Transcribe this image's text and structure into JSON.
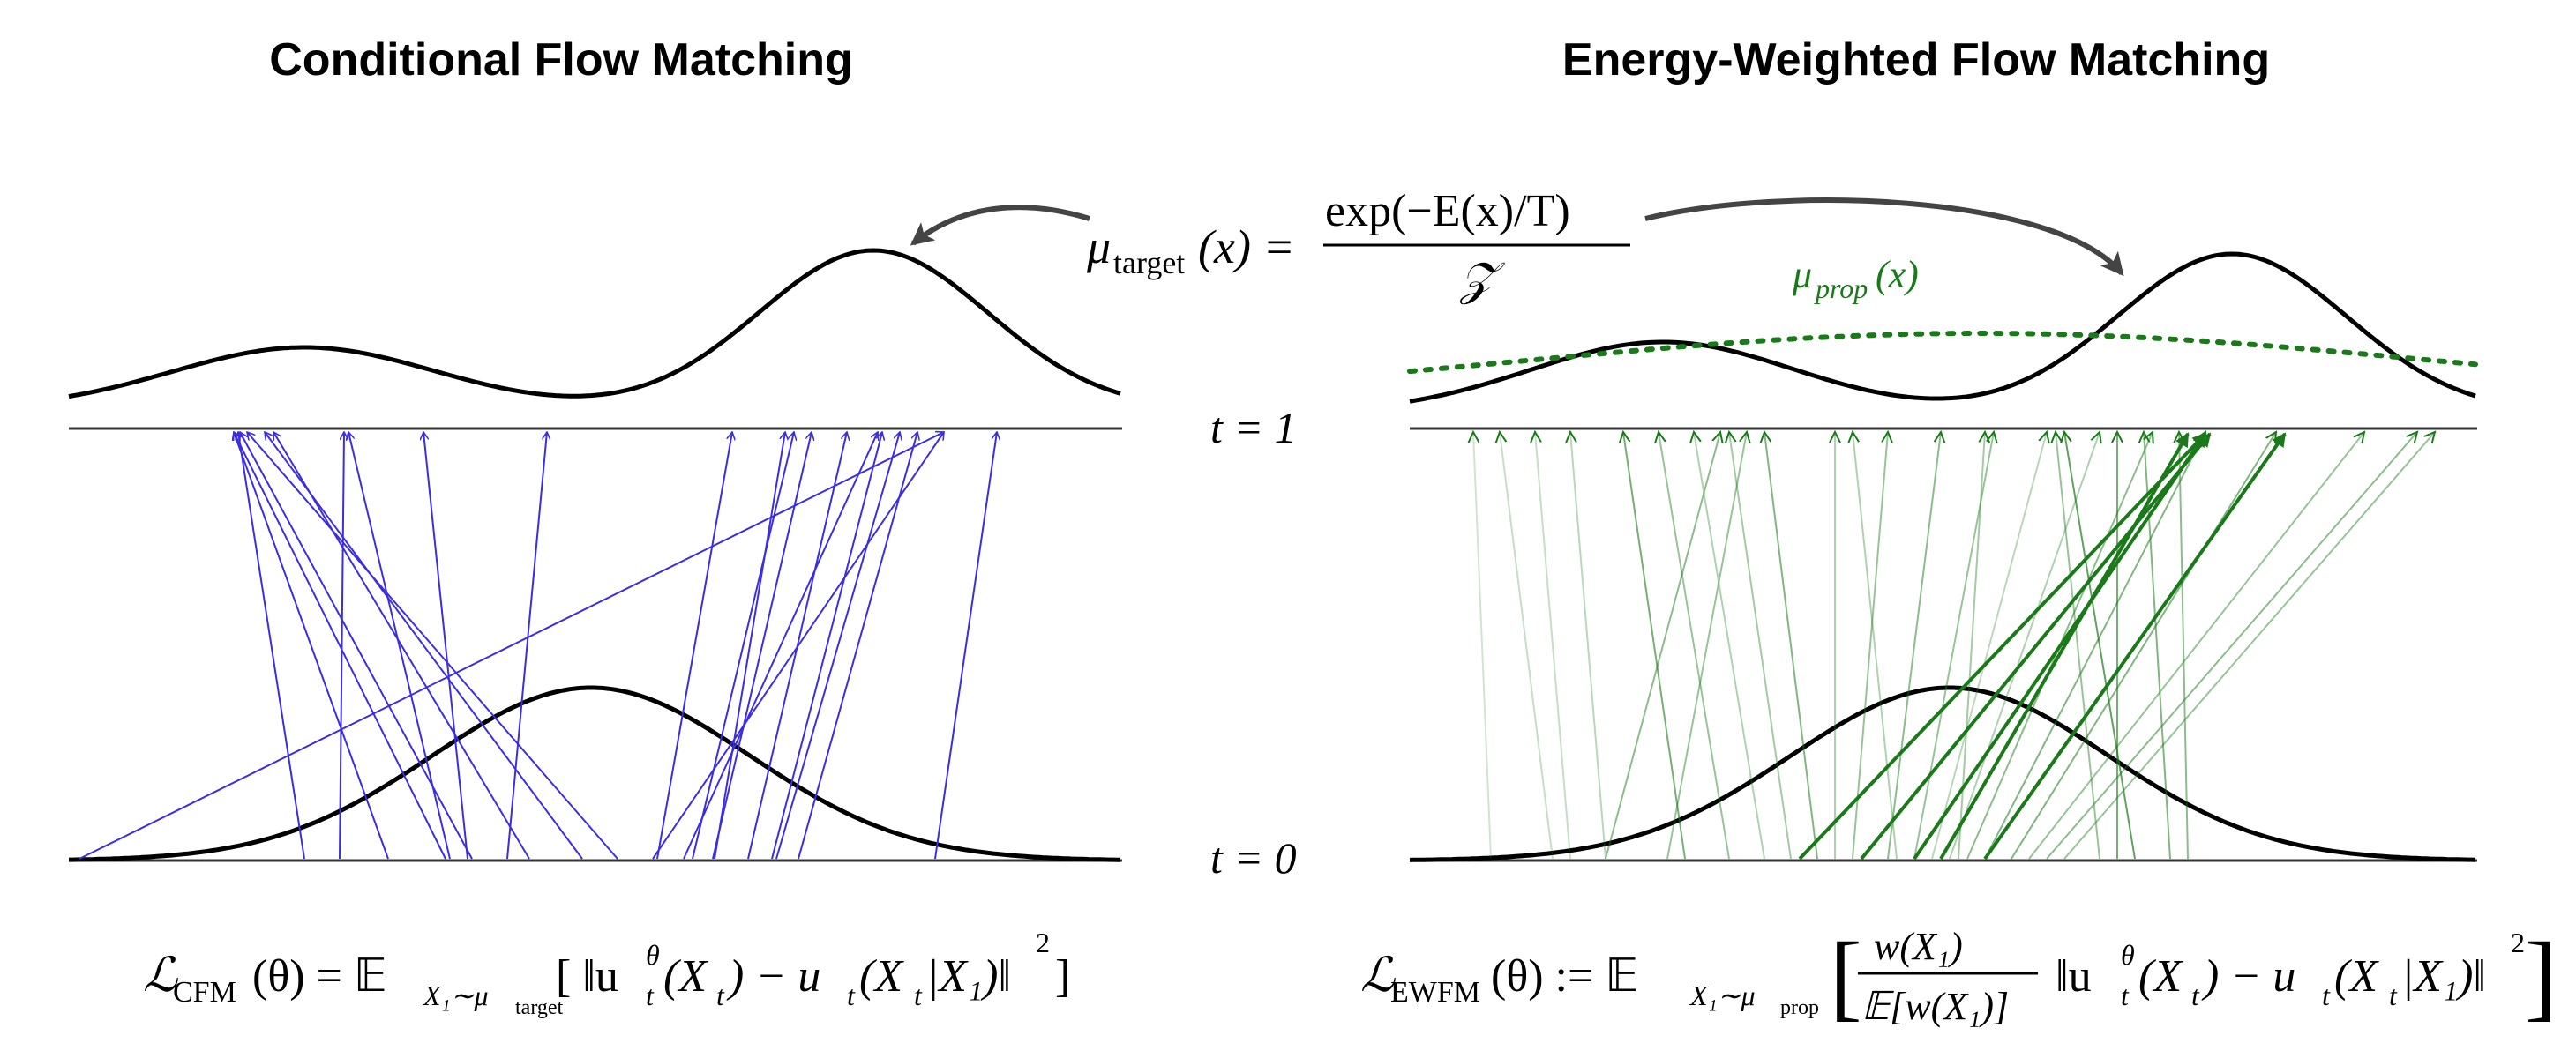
{
  "titles": {
    "left": "Conditional Flow Matching",
    "right": "Energy-Weighted Flow Matching"
  },
  "target_formula": {
    "lhs_mu": "μ",
    "lhs_sub": "target",
    "lhs_arg": "(x) =",
    "numerator": "exp(−E(x)/T)",
    "denominator": "𝒵"
  },
  "proposal_label": {
    "mu": "μ",
    "sub": "prop",
    "arg": "(x)"
  },
  "time_labels": {
    "t1": "t = 1",
    "t0": "t = 0"
  },
  "left_loss": {
    "L": "ℒ",
    "sub": "CFM",
    "rest": "(θ) = 𝔼",
    "exp_sub": "X₁∼μ",
    "exp_subsub": "target",
    "body": "[ ‖u",
    "u_sup": "θ",
    "u_sub": "t",
    "body2": "(X",
    "x_sub": "t",
    "body3": ") − u",
    "u2_sub": "t",
    "body4": "(X",
    "x2_sub": "t",
    "body5": "|X₁)‖",
    "sq": "2",
    "close": "]"
  },
  "right_loss": {
    "L": "ℒ",
    "sub": "EWFM",
    "rest": "(θ) := 𝔼",
    "exp_sub": "X₁∼μ",
    "exp_subsub": "prop",
    "frac_num": "w(X₁)",
    "frac_den": "𝔼[w(X₁)]",
    "body": "‖u",
    "u_sup": "θ",
    "u_sub": "t",
    "body2": "(X",
    "x_sub": "t",
    "body3": ") − u",
    "u2_sub": "t",
    "body4": "(X",
    "x2_sub": "t",
    "body5": "|X₁)‖",
    "sq": "2"
  },
  "colors": {
    "cfm_arrows": "#3b2de0",
    "ewfm_arrows": "#1a7a1a",
    "proposal": "#1a7a1a",
    "curve": "#000000",
    "axis": "#333333",
    "connector": "#444444"
  }
}
